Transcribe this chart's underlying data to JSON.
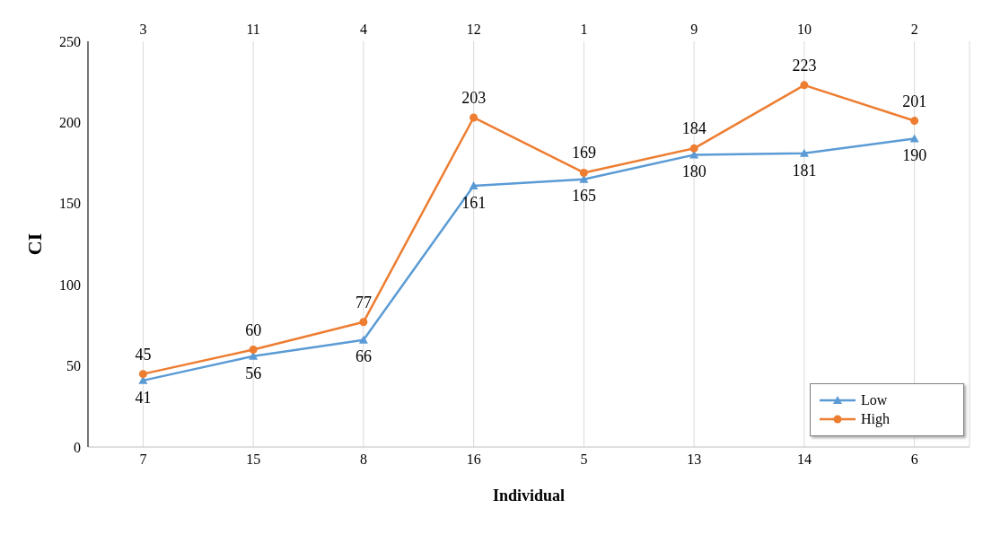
{
  "chart_data": {
    "type": "line",
    "xlabel": "Individual",
    "ylabel": "CI",
    "categories": [
      "7",
      "15",
      "8",
      "16",
      "5",
      "13",
      "14",
      "6"
    ],
    "annotations": [
      "3",
      "11",
      "4",
      "12",
      "1",
      "9",
      "10",
      "2"
    ],
    "series": [
      {
        "name": "Low",
        "color": "#5b9bd5",
        "marker": "triangle",
        "values": [
          41,
          56,
          66,
          161,
          165,
          180,
          181,
          190
        ]
      },
      {
        "name": "High",
        "color": "#ed7d31",
        "marker": "circle",
        "values": [
          45,
          60,
          77,
          203,
          169,
          184,
          223,
          201
        ]
      }
    ],
    "ylim": [
      0,
      250
    ],
    "yticks": [
      0,
      50,
      100,
      150,
      200,
      250
    ],
    "grid": "x",
    "legend": "bottom right",
    "data_labels": true,
    "line_style": "solid"
  }
}
